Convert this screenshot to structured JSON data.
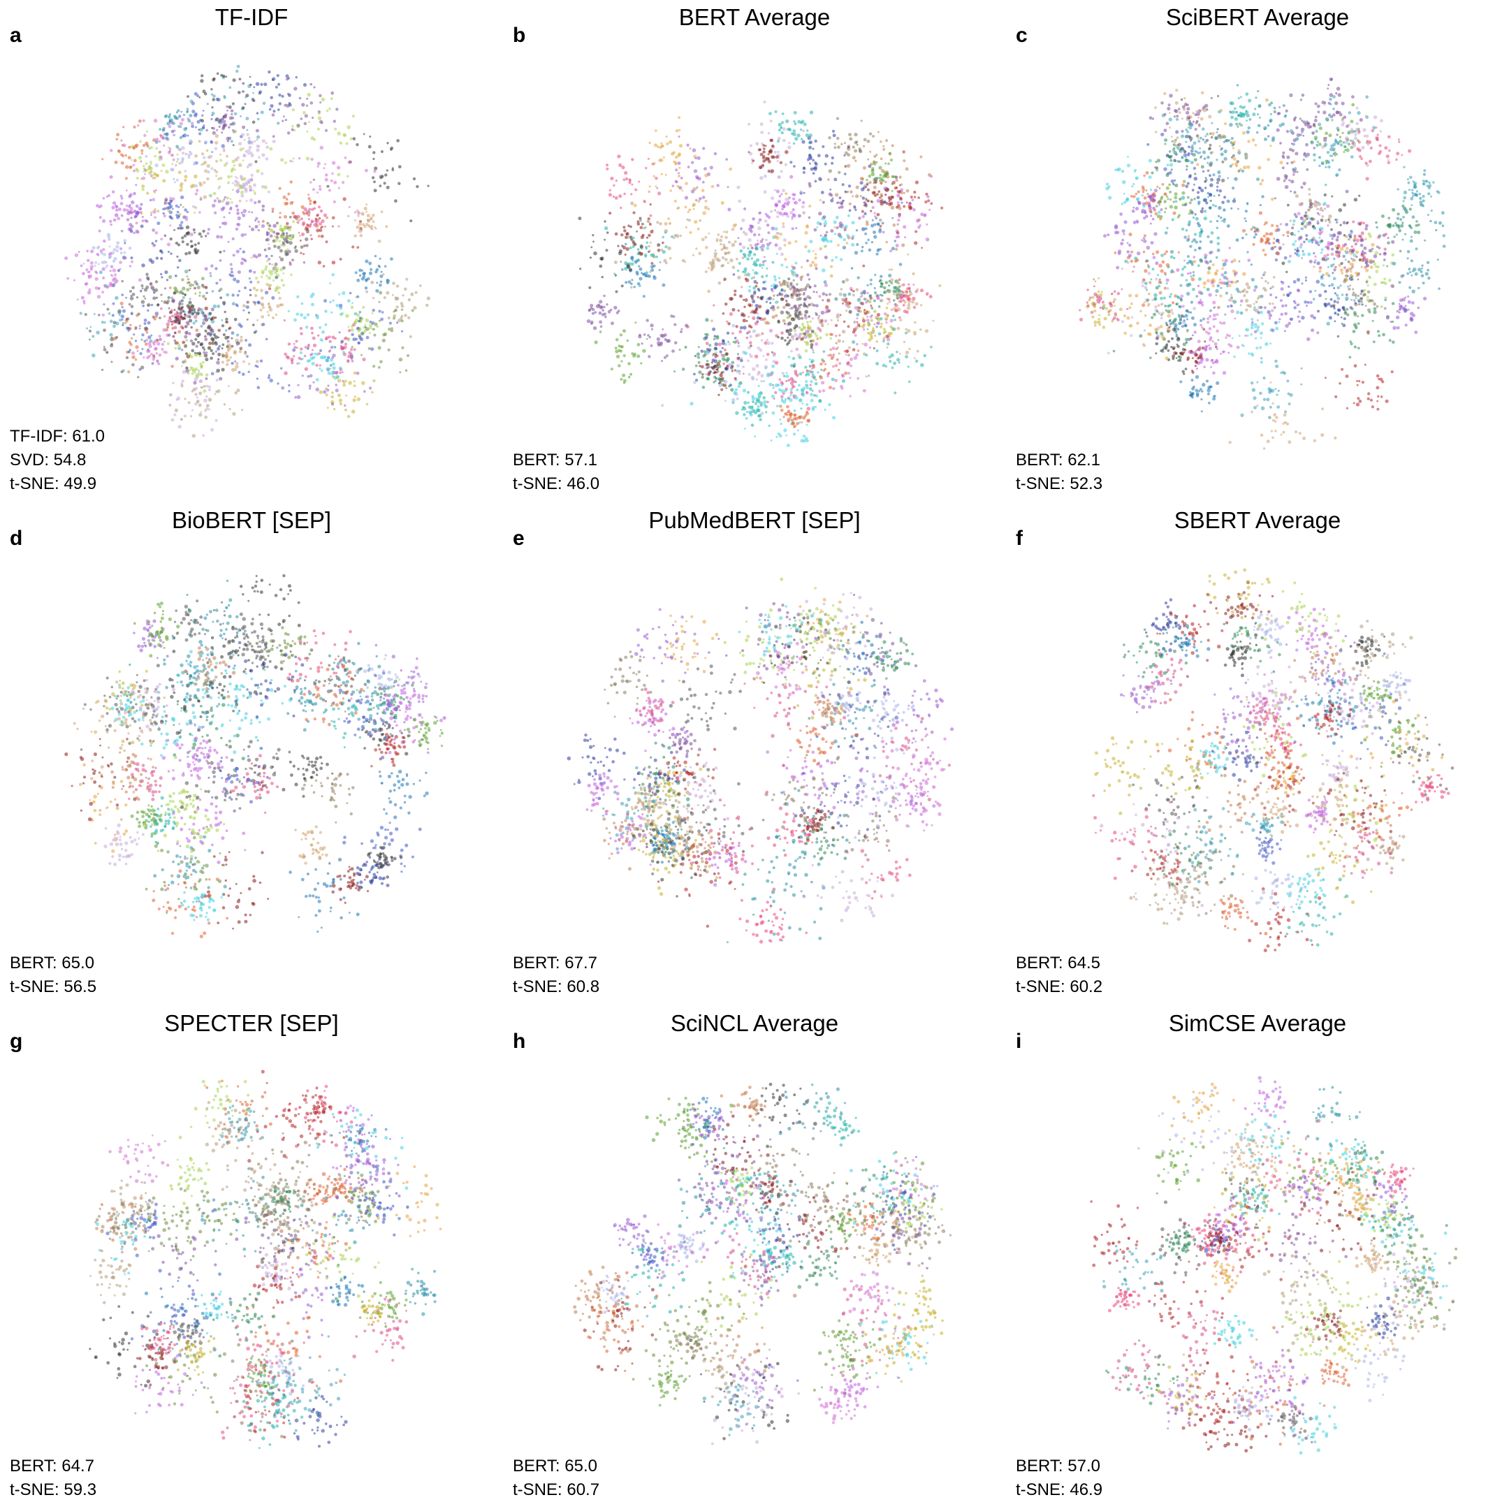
{
  "chart_data": [
    {
      "type": "scatter",
      "letter": "a",
      "title": "TF-IDF",
      "scores": [
        "TF-IDF: 61.0",
        "SVD: 54.8",
        "t-SNE: 49.9"
      ]
    },
    {
      "type": "scatter",
      "letter": "b",
      "title": "BERT Average",
      "scores": [
        "BERT: 57.1",
        "t-SNE: 46.0"
      ]
    },
    {
      "type": "scatter",
      "letter": "c",
      "title": "SciBERT Average",
      "scores": [
        "BERT: 62.1",
        "t-SNE: 52.3"
      ]
    },
    {
      "type": "scatter",
      "letter": "d",
      "title": "BioBERT [SEP]",
      "scores": [
        "BERT: 65.0",
        "t-SNE: 56.5"
      ]
    },
    {
      "type": "scatter",
      "letter": "e",
      "title": "PubMedBERT [SEP]",
      "scores": [
        "BERT: 67.7",
        "t-SNE: 60.8"
      ]
    },
    {
      "type": "scatter",
      "letter": "f",
      "title": "SBERT Average",
      "scores": [
        "BERT: 64.5",
        "t-SNE: 60.2"
      ]
    },
    {
      "type": "scatter",
      "letter": "g",
      "title": "SPECTER [SEP]",
      "scores": [
        "BERT: 64.7",
        "t-SNE: 59.3"
      ]
    },
    {
      "type": "scatter",
      "letter": "h",
      "title": "SciNCL Average",
      "scores": [
        "BERT: 65.0",
        "t-SNE: 60.7"
      ]
    },
    {
      "type": "scatter",
      "letter": "i",
      "title": "SimCSE Average",
      "scores": [
        "BERT: 57.0",
        "t-SNE: 46.9"
      ]
    }
  ],
  "palette": [
    "#1f77b4",
    "#2a8fa8",
    "#3aa0b8",
    "#b39b7a",
    "#8c7a5c",
    "#c27c4e",
    "#e0602f",
    "#d94f8a",
    "#e8487a",
    "#9b59d0",
    "#c060e0",
    "#c7a9d8",
    "#a9b4e8",
    "#4157c7",
    "#2f3f9e",
    "#2e8b57",
    "#5aa02c",
    "#a6d34b",
    "#c7b12b",
    "#e6a23c",
    "#40d0e0",
    "#20b2aa",
    "#8b1a1a",
    "#b22222",
    "#333333",
    "#555555",
    "#7f4f9f",
    "#d070d0",
    "#6a8f3a",
    "#d0a070"
  ]
}
